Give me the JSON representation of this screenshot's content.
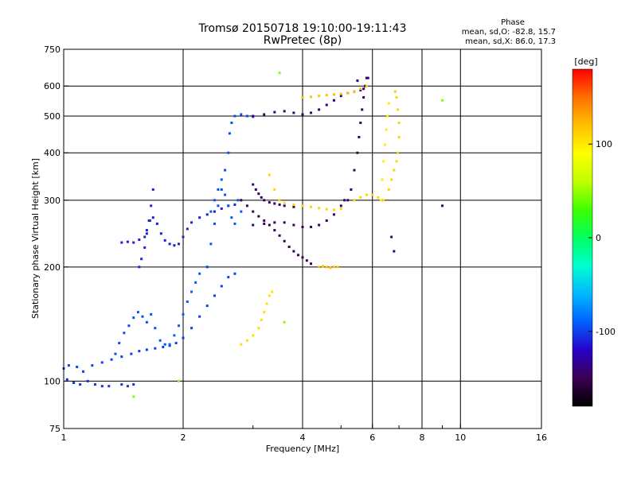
{
  "chart_data": {
    "type": "scatter",
    "title": "Tromsø 20150718 19:10:00-19:11:43",
    "subtitle": "RwPretec (8p)",
    "xlabel": "Frequency [MHz]",
    "ylabel": "Stationary phase Virtual Height [km]",
    "x_scale": "log",
    "y_scale": "log",
    "xlim": [
      1,
      16
    ],
    "ylim": [
      75,
      750
    ],
    "x_ticks": [
      1,
      2,
      4,
      6,
      8,
      10,
      16
    ],
    "x_minor_ticks": [
      3,
      5,
      7,
      9
    ],
    "y_ticks": [
      75,
      100,
      200,
      300,
      400,
      500,
      600,
      750
    ],
    "grid": true,
    "stats": {
      "heading": "Phase",
      "o_line": "mean, sd,O: -82.8, 15.7",
      "x_line": "mean, sd,X:  86.0, 17.3"
    },
    "colorbar": {
      "label": "[deg]",
      "range": [
        -180,
        180
      ],
      "ticks": [
        -100,
        0,
        100
      ],
      "colors": [
        "#000000",
        "#3b0050",
        "#2800c8",
        "#0060ff",
        "#00b8ff",
        "#00ffd0",
        "#00ff60",
        "#40ff00",
        "#c0ff00",
        "#ffff00",
        "#ffc000",
        "#ff7000",
        "#ff0000"
      ]
    },
    "traces": [
      {
        "name": "",
        "phase": -100,
        "points": [
          [
            1.0,
            108
          ],
          [
            1.03,
            110
          ],
          [
            1.08,
            109
          ],
          [
            1.12,
            106
          ],
          [
            1.18,
            110
          ],
          [
            1.25,
            112
          ],
          [
            1.32,
            114
          ],
          [
            1.4,
            116
          ],
          [
            1.48,
            118
          ],
          [
            1.55,
            120
          ],
          [
            1.62,
            121
          ],
          [
            1.7,
            122
          ],
          [
            1.78,
            123
          ],
          [
            1.85,
            124
          ],
          [
            1.92,
            126
          ],
          [
            2.0,
            130
          ],
          [
            2.1,
            138
          ],
          [
            2.2,
            148
          ],
          [
            2.3,
            158
          ],
          [
            2.4,
            168
          ],
          [
            2.5,
            178
          ],
          [
            2.6,
            188
          ],
          [
            2.7,
            192
          ]
        ]
      },
      {
        "name": "",
        "phase": -105,
        "points": [
          [
            1.02,
            101
          ],
          [
            1.06,
            99
          ],
          [
            1.1,
            98
          ],
          [
            1.15,
            100
          ],
          [
            1.2,
            98
          ],
          [
            1.25,
            97
          ],
          [
            1.3,
            97
          ],
          [
            1.4,
            98
          ],
          [
            1.45,
            97
          ],
          [
            1.5,
            98
          ]
        ]
      },
      {
        "name": "",
        "phase": -95,
        "points": [
          [
            1.35,
            118
          ],
          [
            1.38,
            126
          ],
          [
            1.42,
            134
          ],
          [
            1.46,
            140
          ],
          [
            1.5,
            147
          ],
          [
            1.54,
            152
          ],
          [
            1.58,
            148
          ],
          [
            1.62,
            143
          ],
          [
            1.66,
            150
          ],
          [
            1.7,
            138
          ],
          [
            1.75,
            128
          ],
          [
            1.8,
            125
          ]
        ]
      },
      {
        "name": "",
        "phase": -90,
        "points": [
          [
            1.85,
            125
          ],
          [
            1.9,
            132
          ],
          [
            1.95,
            140
          ],
          [
            2.0,
            150
          ],
          [
            2.05,
            162
          ],
          [
            2.1,
            172
          ],
          [
            2.15,
            182
          ],
          [
            2.2,
            192
          ],
          [
            2.3,
            200
          ]
        ]
      },
      {
        "name": "",
        "phase": -110,
        "points": [
          [
            1.4,
            232
          ],
          [
            1.45,
            233
          ],
          [
            1.5,
            232
          ],
          [
            1.55,
            236
          ],
          [
            1.6,
            240
          ],
          [
            1.62,
            250
          ],
          [
            1.65,
            265
          ],
          [
            1.68,
            270
          ],
          [
            1.72,
            260
          ],
          [
            1.76,
            245
          ],
          [
            1.8,
            235
          ],
          [
            1.85,
            230
          ],
          [
            1.9,
            228
          ],
          [
            1.95,
            230
          ],
          [
            2.0,
            240
          ],
          [
            2.05,
            252
          ],
          [
            2.1,
            262
          ],
          [
            2.2,
            270
          ],
          [
            2.3,
            275
          ],
          [
            2.4,
            280
          ],
          [
            2.5,
            285
          ],
          [
            2.6,
            290
          ],
          [
            2.7,
            292
          ]
        ]
      },
      {
        "name": "",
        "phase": -108,
        "points": [
          [
            1.55,
            200
          ],
          [
            1.57,
            210
          ],
          [
            1.6,
            225
          ],
          [
            1.62,
            245
          ],
          [
            1.64,
            265
          ],
          [
            1.66,
            290
          ],
          [
            1.68,
            320
          ]
        ]
      },
      {
        "name": "",
        "phase": -95,
        "points": [
          [
            2.3,
            200
          ],
          [
            2.35,
            230
          ],
          [
            2.4,
            260
          ],
          [
            2.45,
            290
          ],
          [
            2.5,
            320
          ],
          [
            2.55,
            360
          ],
          [
            2.6,
            400
          ],
          [
            2.62,
            450
          ],
          [
            2.65,
            480
          ],
          [
            2.7,
            500
          ],
          [
            2.8,
            505
          ],
          [
            2.9,
            500
          ],
          [
            3.0,
            498
          ]
        ]
      },
      {
        "name": "",
        "phase": -92,
        "points": [
          [
            2.35,
            280
          ],
          [
            2.4,
            300
          ],
          [
            2.45,
            320
          ],
          [
            2.5,
            340
          ],
          [
            2.55,
            310
          ],
          [
            2.6,
            290
          ],
          [
            2.65,
            270
          ],
          [
            2.7,
            260
          ],
          [
            2.75,
            300
          ],
          [
            2.8,
            280
          ]
        ]
      },
      {
        "name": "",
        "phase": -140,
        "points": [
          [
            3.0,
            500
          ],
          [
            3.2,
            505
          ],
          [
            3.4,
            512
          ],
          [
            3.6,
            515
          ],
          [
            3.8,
            510
          ],
          [
            4.0,
            505
          ],
          [
            4.2,
            510
          ],
          [
            4.4,
            520
          ],
          [
            4.6,
            535
          ],
          [
            4.8,
            550
          ],
          [
            5.0,
            565
          ],
          [
            5.2,
            575
          ],
          [
            5.4,
            580
          ],
          [
            5.6,
            585
          ],
          [
            5.7,
            590
          ]
        ]
      },
      {
        "name": "",
        "phase": -145,
        "points": [
          [
            3.0,
            258
          ],
          [
            3.2,
            260
          ],
          [
            3.4,
            262
          ],
          [
            3.6,
            262
          ],
          [
            3.8,
            258
          ],
          [
            4.0,
            255
          ],
          [
            4.2,
            255
          ],
          [
            4.4,
            258
          ],
          [
            4.6,
            265
          ],
          [
            4.8,
            275
          ],
          [
            5.0,
            290
          ],
          [
            5.1,
            300
          ]
        ]
      },
      {
        "name": "",
        "phase": -150,
        "points": [
          [
            2.8,
            300
          ],
          [
            2.9,
            290
          ],
          [
            3.0,
            280
          ],
          [
            3.1,
            272
          ],
          [
            3.2,
            265
          ],
          [
            3.3,
            258
          ],
          [
            3.4,
            250
          ],
          [
            3.5,
            242
          ],
          [
            3.6,
            234
          ],
          [
            3.7,
            226
          ],
          [
            3.8,
            220
          ],
          [
            3.9,
            215
          ],
          [
            4.0,
            212
          ],
          [
            4.1,
            208
          ],
          [
            4.2,
            204
          ]
        ]
      },
      {
        "name": "",
        "phase": -148,
        "points": [
          [
            3.0,
            330
          ],
          [
            3.05,
            320
          ],
          [
            3.1,
            312
          ],
          [
            3.15,
            305
          ],
          [
            3.2,
            300
          ],
          [
            3.3,
            296
          ],
          [
            3.4,
            294
          ],
          [
            3.5,
            292
          ],
          [
            3.6,
            290
          ],
          [
            3.8,
            288
          ]
        ]
      },
      {
        "name": "",
        "phase": -145,
        "points": [
          [
            5.2,
            300
          ],
          [
            5.3,
            320
          ],
          [
            5.4,
            360
          ],
          [
            5.5,
            400
          ],
          [
            5.55,
            440
          ],
          [
            5.6,
            480
          ],
          [
            5.65,
            520
          ],
          [
            5.7,
            560
          ],
          [
            5.75,
            600
          ],
          [
            5.8,
            630
          ]
        ]
      },
      {
        "name": "",
        "phase": 110,
        "points": [
          [
            3.3,
            350
          ],
          [
            3.4,
            320
          ],
          [
            3.5,
            300
          ],
          [
            3.6,
            295
          ],
          [
            3.8,
            292
          ],
          [
            4.0,
            290
          ],
          [
            4.2,
            288
          ],
          [
            4.4,
            286
          ],
          [
            4.6,
            284
          ],
          [
            4.8,
            283
          ],
          [
            5.0,
            285
          ]
        ]
      },
      {
        "name": "",
        "phase": 120,
        "points": [
          [
            4.0,
            560
          ],
          [
            4.2,
            562
          ],
          [
            4.4,
            565
          ],
          [
            4.6,
            568
          ],
          [
            4.8,
            570
          ],
          [
            5.0,
            572
          ],
          [
            5.2,
            575
          ],
          [
            5.4,
            580
          ],
          [
            5.6,
            590
          ],
          [
            5.8,
            600
          ]
        ]
      },
      {
        "name": "",
        "phase": 110,
        "points": [
          [
            5.4,
            300
          ],
          [
            5.6,
            305
          ],
          [
            5.8,
            310
          ],
          [
            6.0,
            310
          ],
          [
            6.2,
            305
          ],
          [
            6.4,
            300
          ],
          [
            6.6,
            320
          ],
          [
            6.7,
            340
          ],
          [
            6.8,
            360
          ],
          [
            6.9,
            380
          ],
          [
            6.95,
            400
          ],
          [
            7.0,
            440
          ],
          [
            7.0,
            480
          ],
          [
            6.95,
            520
          ],
          [
            6.9,
            560
          ],
          [
            6.85,
            580
          ]
        ]
      },
      {
        "name": "",
        "phase": 100,
        "points": [
          [
            6.3,
            300
          ],
          [
            6.35,
            340
          ],
          [
            6.4,
            380
          ],
          [
            6.45,
            420
          ],
          [
            6.5,
            460
          ],
          [
            6.55,
            500
          ],
          [
            6.6,
            540
          ]
        ]
      },
      {
        "name": "",
        "phase": 105,
        "points": [
          [
            2.8,
            125
          ],
          [
            2.9,
            128
          ],
          [
            3.0,
            132
          ],
          [
            3.1,
            138
          ],
          [
            3.15,
            145
          ],
          [
            3.2,
            152
          ],
          [
            3.25,
            160
          ],
          [
            3.3,
            168
          ],
          [
            3.35,
            172
          ]
        ]
      },
      {
        "name": "",
        "phase": 118,
        "points": [
          [
            4.4,
            200
          ],
          [
            4.5,
            201
          ],
          [
            4.6,
            200
          ],
          [
            4.7,
            199
          ],
          [
            4.8,
            200
          ],
          [
            4.9,
            200
          ]
        ]
      },
      {
        "name": "",
        "phase": 45,
        "points": [
          [
            3.5,
            650
          ],
          [
            1.5,
            91
          ],
          [
            1.95,
            100
          ],
          [
            3.6,
            143
          ],
          [
            9.0,
            550
          ]
        ]
      },
      {
        "name": "",
        "phase": -140,
        "points": [
          [
            5.5,
            620
          ],
          [
            5.85,
            630
          ],
          [
            9.0,
            290
          ],
          [
            6.7,
            240
          ],
          [
            6.8,
            220
          ]
        ]
      }
    ]
  }
}
